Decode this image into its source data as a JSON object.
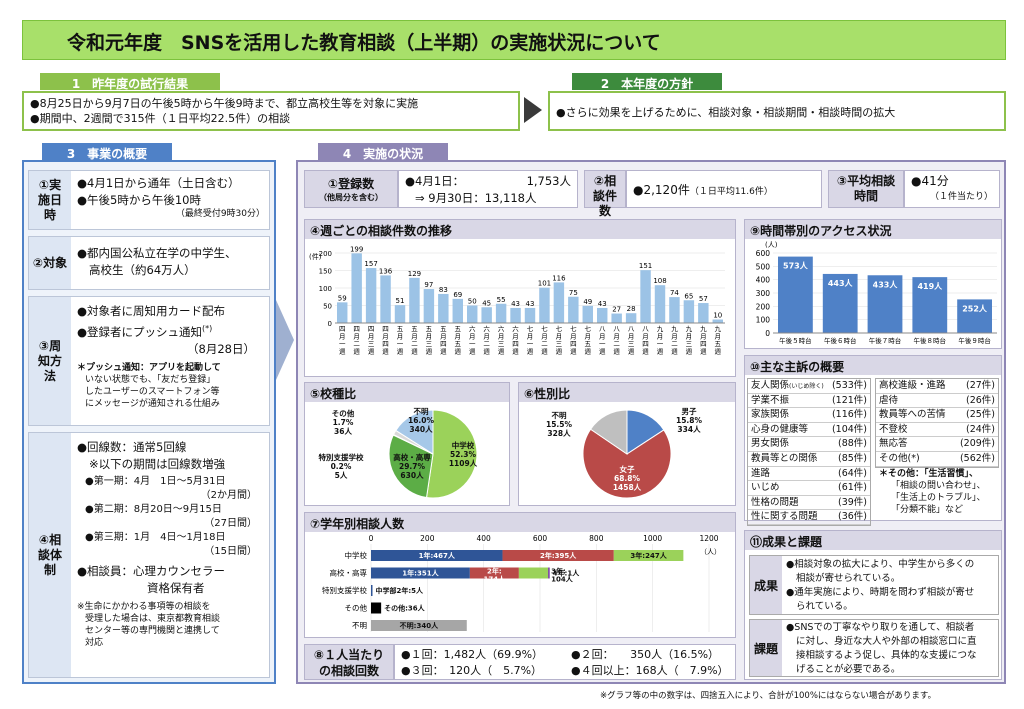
{
  "title": "令和元年度　SNSを活用した教育相談（上半期）の実施状況について",
  "sec1": {
    "tab": "1　昨年度の試行結果",
    "lines": [
      "●8月25日から9月7日の午後5時から午後9時まで、都立高校生等を対象に実施",
      "●期間中、2週間で315件（１日平均22.5件）の相談"
    ]
  },
  "sec2": {
    "tab": "2　本年度の方針",
    "line": "●さらに効果を上げるために、相談対象・相談期間・相談時間の拡大"
  },
  "sec3": {
    "tab": "3　事業の概要",
    "r1": {
      "label": "①実施日時",
      "l1": "●4月1日から通年（土日含む）",
      "l2": "●午後5時から午後10時",
      "l3": "（最終受付9時30分）"
    },
    "r2": {
      "label": "②対象",
      "l1": "●都内国公私立在学の中学生、",
      "l2": "高校生（約64万人）"
    },
    "r3": {
      "label": "③周知方法",
      "l1": "●対象者に周知用カード配布",
      "l2": "●登録者にプッシュ通知",
      "l2s": "(*)",
      "l3": "（8月28日）",
      "n1": "＊プッシュ通知：アプリを起動して",
      "n2": "いない状態でも、「友だち登録」",
      "n3": "したユーザーのスマートフォン等",
      "n4": "にメッセージが通知される仕組み"
    },
    "r4": {
      "label": "④相談体制",
      "l1": "●回線数：通常5回線",
      "l2": "※以下の期間は回線数増強",
      "p1": "●第一期：4月　1日～5月31日",
      "p1b": "（2か月間）",
      "p2": "●第二期：8月20日～9月15日",
      "p2b": "（27日間）",
      "p3": "●第三期：1月　4日～1月18日",
      "p3b": "（15日間）",
      "s1": "●相談員：心理カウンセラー",
      "s2": "資格保有者",
      "n1": "※生命にかかわる事項等の相談を",
      "n2": "受理した場合は、東京都教育相談",
      "n3": "センター等の専門機関と連携して",
      "n4": "対応"
    }
  },
  "sec4": {
    "tab": "4　実施の状況",
    "reg": {
      "label": "①登録数",
      "sub": "（他局分を含む）",
      "l1a": "●4月1日：",
      "l1b": "1,753人",
      "l2": "⇒ 9月30日：13,118人"
    },
    "cnt": {
      "label": "②相談件数",
      "value": "●2,120件",
      "note": "（１日平均11.6件）"
    },
    "avg": {
      "label": "③平均相談時間",
      "value": "●41分",
      "note": "（１件当たり）"
    },
    "weekly": {
      "title": "④週ごとの相談件数の推移",
      "unit": "(件)"
    },
    "school": {
      "title": "⑤校種比",
      "l_other": "その他\n1.7%\n36人",
      "l_unknown": "不明\n16.0%\n340人",
      "l_mid": "中学校\n52.3%\n1109人",
      "l_high": "高校・高専\n29.7%\n630人",
      "l_sp": "特別支援学校\n0.2%\n5人"
    },
    "gender": {
      "title": "⑥性別比",
      "l_unknown": "不明\n15.5%\n328人",
      "l_male": "男子\n15.8%\n334人",
      "l_female": "女子\n68.8%\n1458人"
    },
    "grade": {
      "title": "⑦学年別相談人数",
      "unit": "（人）"
    },
    "per": {
      "label1": "⑧１人当たり",
      "label2": "の相談回数",
      "a": "●１回：1,482人（69.9%）",
      "b": "●２回：　　350人（16.5%）",
      "c": "●３回：　120人（　5.7%）",
      "d": "●４回以上：168人（　7.9%）"
    },
    "hourly": {
      "title": "⑨時間帯別のアクセス状況",
      "unit": "(人)"
    },
    "topics": {
      "title": "⑩主な主訴の概要",
      "left": [
        [
          "友人関係",
          "(いじめ除く)",
          "(533件)"
        ],
        [
          "学業不振",
          "",
          "(121件)"
        ],
        [
          "家族関係",
          "",
          "(116件)"
        ],
        [
          "心身の健康等",
          "",
          "(104件)"
        ],
        [
          "男女関係",
          "",
          "(88件)"
        ],
        [
          "教員等との関係",
          "",
          "(85件)"
        ],
        [
          "進路",
          "",
          "(64件)"
        ],
        [
          "いじめ",
          "",
          "(61件)"
        ],
        [
          "性格の問題",
          "",
          "(39件)"
        ],
        [
          "性に関する問題",
          "",
          "(36件)"
        ]
      ],
      "right": [
        [
          "高校進級・進路",
          "(27件)"
        ],
        [
          "虐待",
          "(26件)"
        ],
        [
          "教員等への苦情",
          "(25件)"
        ],
        [
          "不登校",
          "(24件)"
        ],
        [
          "無応答",
          "(209件)"
        ],
        [
          "その他(*)",
          "(562件)"
        ]
      ],
      "n1": "＊その他：「生活習慣」、",
      "n2": "「相談の問い合わせ」、",
      "n3": "「生活上のトラブル」、",
      "n4": "「分類不能」など"
    },
    "results": {
      "title": "⑪成果と課題",
      "l1": "成果",
      "t1": [
        "●相談対象の拡大により、中学生から多くの",
        "相談が寄せられている。",
        "●通年実施により、時期を問わず相談が寄せ",
        "られている。"
      ],
      "l2": "課題",
      "t2": [
        "●SNSでの丁寧なやり取りを通して、相談者",
        "に対し、身近な大人や外部の相談窓口に直",
        "接相談するよう促し、具体的な支援につな",
        "げることが必要である。"
      ]
    }
  },
  "footnote": "※グラフ等の中の数字は、四捨五入により、合計が100%にはならない場合があります。",
  "chart_data": [
    {
      "type": "bar",
      "title": "④週ごとの相談件数の推移",
      "ylabel": "(件)",
      "ylim": [
        0,
        200
      ],
      "categories": [
        "四月一週",
        "四月二週",
        "四月三週",
        "四月四週",
        "五月一週",
        "五月二週",
        "五月三週",
        "五月四週",
        "五月五週",
        "六月一週",
        "六月二週",
        "六月三週",
        "六月四週",
        "七月一週",
        "七月二週",
        "七月三週",
        "七月四週",
        "七月五週",
        "八月一週",
        "八月二週",
        "八月三週",
        "八月四週",
        "九月一週",
        "九月二週",
        "九月三週",
        "九月四週",
        "九月五週"
      ],
      "values": [
        59,
        199,
        157,
        136,
        51,
        129,
        97,
        83,
        69,
        50,
        45,
        55,
        43,
        43,
        101,
        116,
        75,
        49,
        43,
        27,
        28,
        151,
        108,
        74,
        65,
        57,
        10
      ],
      "colors": [
        "#9cc3e6",
        "#9cc3e6",
        "#9cc3e6",
        "#9cc3e6",
        "#9cc3e6",
        "#9cc3e6",
        "#9cc3e6",
        "#9cc3e6",
        "#9cc3e6",
        "#9cc3e6",
        "#9cc3e6",
        "#9cc3e6",
        "#9cc3e6",
        "#9cc3e6",
        "#9cc3e6",
        "#9cc3e6",
        "#9cc3e6",
        "#9cc3e6",
        "#9cc3e6",
        "#9cc3e6",
        "#9cc3e6",
        "#9cc3e6",
        "#9cc3e6",
        "#9cc3e6",
        "#9cc3e6",
        "#9cc3e6",
        "#9cc3e6"
      ]
    },
    {
      "type": "bar",
      "title": "⑨時間帯別のアクセス状況",
      "ylabel": "(人)",
      "ylim": [
        0,
        600
      ],
      "categories": [
        "午後５時台",
        "午後６時台",
        "午後７時台",
        "午後８時台",
        "午後９時台"
      ],
      "values": [
        573,
        443,
        433,
        419,
        252
      ],
      "labels": [
        "573人",
        "443人",
        "433人",
        "419人",
        "252人"
      ],
      "color": "#4f81c7"
    },
    {
      "type": "pie",
      "title": "⑤校種比",
      "categories": [
        "中学校",
        "高校・高専",
        "特別支援学校",
        "その他",
        "不明"
      ],
      "values": [
        52.3,
        29.7,
        0.2,
        1.7,
        16.0
      ],
      "colors": [
        "#9bd25a",
        "#5cad46",
        "#3b7d2e",
        "#d9d9d9",
        "#a6c8e8"
      ]
    },
    {
      "type": "pie",
      "title": "⑥性別比",
      "categories": [
        "男子",
        "女子",
        "不明"
      ],
      "values": [
        15.8,
        68.8,
        15.5
      ],
      "colors": [
        "#4f81c7",
        "#b94a48",
        "#bfbfbf"
      ]
    },
    {
      "type": "bar",
      "title": "⑦学年別相談人数",
      "xlim": [
        0,
        1200
      ],
      "xticks": [
        0,
        200,
        400,
        600,
        800,
        1000,
        1200
      ],
      "categories": [
        "中学校",
        "高校・高専",
        "特別支援学校",
        "その他",
        "不明"
      ],
      "rows": [
        [
          {
            "v": 467,
            "label": "1年:467人",
            "c": "#2f5597"
          },
          {
            "v": 395,
            "label": "2年:395人",
            "c": "#b94a48"
          },
          {
            "v": 247,
            "label": "3年:247人",
            "c": "#9bd25a"
          }
        ],
        [
          {
            "v": 351,
            "label": "1年:351人",
            "c": "#2f5597"
          },
          {
            "v": 174,
            "label": "2年:\n174人",
            "c": "#b94a48"
          },
          {
            "v": 104,
            "label": "3年:\n104人",
            "c": "#9bd25a"
          },
          {
            "v": 1,
            "label": "4年:1人",
            "c": "#7030a0"
          }
        ],
        [
          {
            "v": 5,
            "label": "中学部2年:5人",
            "c": "#2f5597"
          }
        ],
        [
          {
            "v": 36,
            "label": "その他:36人",
            "c": "#000000"
          }
        ],
        [
          {
            "v": 340,
            "label": "不明:340人",
            "c": "#a6a6a6"
          }
        ]
      ]
    }
  ]
}
